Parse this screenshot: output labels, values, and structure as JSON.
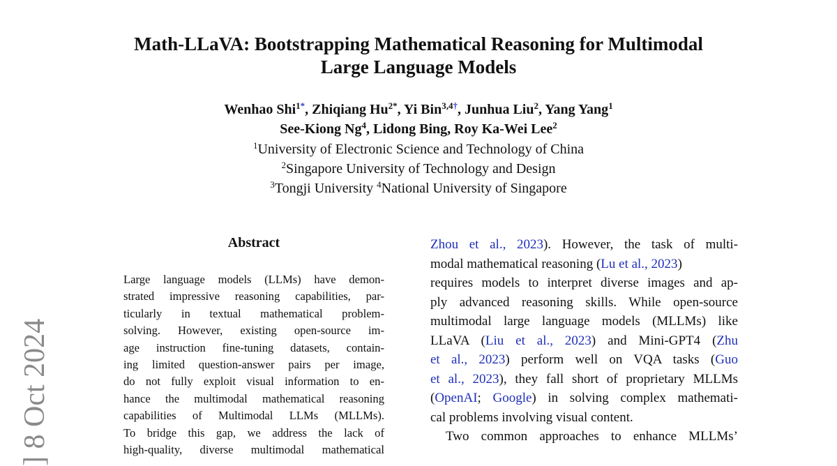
{
  "side_stamp": "] 8 Oct 2024",
  "header": {
    "title_lines": [
      "Math-LLaVA: Bootstrapping Mathematical Reasoning for Multimodal",
      "Large Language Models"
    ],
    "author_lines": [
      [
        "Wenhao Shi",
        {
          "sup": "1"
        },
        {
          "mark": "*"
        },
        ", Zhiqiang Hu",
        {
          "sup": "2*"
        },
        ", Yi Bin",
        {
          "sup": "3,4"
        },
        {
          "mark": "†"
        },
        ", Junhua Liu",
        {
          "sup": "2"
        },
        ", Yang Yang",
        {
          "sup": "1"
        }
      ],
      [
        "See-Kiong Ng",
        {
          "sup": "4"
        },
        ", Lidong Bing, Roy Ka-Wei Lee",
        {
          "sup": "2"
        }
      ]
    ],
    "affiliation_lines": [
      [
        {
          "sup": "1"
        },
        "University of Electronic Science and Technology of China"
      ],
      [
        {
          "sup": "2"
        },
        "Singapore University of Technology and Design"
      ],
      [
        {
          "sup": "3"
        },
        "Tongji University ",
        {
          "sup": "4"
        },
        "National University of Singapore"
      ]
    ]
  },
  "abstract": {
    "heading": "Abstract",
    "lines": [
      [
        "Large language models (LLMs) have demon-"
      ],
      [
        "strated impressive reasoning capabilities, par-"
      ],
      [
        "ticularly in textual mathematical problem-"
      ],
      [
        "solving.  However, existing open-source im-"
      ],
      [
        "age instruction fine-tuning datasets, contain-"
      ],
      [
        "ing limited question-answer pairs per image,"
      ],
      [
        "do not fully exploit visual information to en-"
      ],
      [
        "hance the multimodal mathematical reasoning"
      ],
      [
        "capabilities of Multimodal LLMs (MLLMs)."
      ],
      [
        "To bridge this gap, we address the lack of"
      ],
      [
        "high-quality, diverse multimodal mathematical"
      ]
    ]
  },
  "body": {
    "lines": [
      [
        {
          "cite": "Zhou et al., 2023"
        },
        ").  However, the task of multi-"
      ],
      [
        "modal mathematical reasoning (",
        {
          "cite": "Lu et al., 2023"
        },
        ")"
      ],
      [
        "requires models to interpret diverse images and ap-"
      ],
      [
        "ply advanced reasoning skills. While open-source"
      ],
      [
        "multimodal large language models (MLLMs) like"
      ],
      [
        "LLaVA (",
        {
          "cite": "Liu et al., 2023"
        },
        ") and Mini-GPT4 (",
        {
          "cite": "Zhu"
        }
      ],
      [
        {
          "cite": "et al., 2023"
        },
        ") perform well on VQA tasks (",
        {
          "cite": "Guo"
        }
      ],
      [
        {
          "cite": "et al., 2023"
        },
        "), they fall short of proprietary MLLMs"
      ],
      [
        "(",
        {
          "cite": "OpenAI"
        },
        "; ",
        {
          "cite": "Google"
        },
        ") in solving complex mathemati-"
      ],
      [
        "cal problems involving visual content."
      ],
      [
        "Two common approaches to enhance MLLMs’"
      ]
    ]
  }
}
